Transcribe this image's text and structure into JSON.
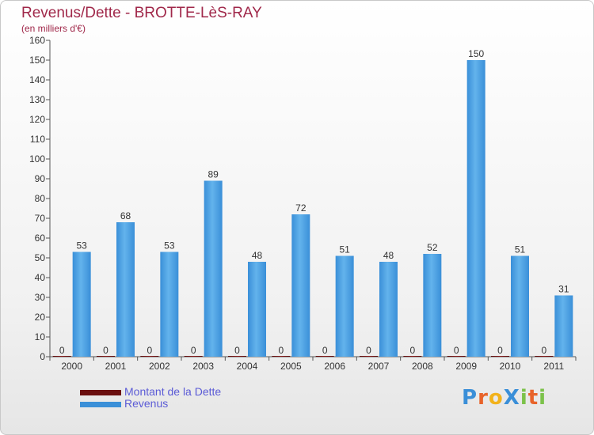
{
  "title": "Revenus/Dette - BROTTE-LèS-RAY",
  "subtitle": "(en milliers d'€)",
  "brand": {
    "text": "ProXiti",
    "letters": [
      "P",
      "r",
      "o",
      "X",
      "i",
      "t",
      "i"
    ],
    "colors": [
      "#3a8fd8",
      "#e8632a",
      "#f2b21b",
      "#3a8fd8",
      "#7cc24a",
      "#e8632a",
      "#7cc24a"
    ]
  },
  "colors": {
    "dette": "#6b0f0f",
    "revenus": "#3a8fd8",
    "revenus_light": "#5fb0ea",
    "title": "#a0284a",
    "legend_text": "#5b5bd6"
  },
  "chart_data": {
    "type": "bar",
    "title": "Revenus/Dette - BROTTE-LèS-RAY",
    "subtitle": "(en milliers d'€)",
    "categories": [
      "2000",
      "2001",
      "2002",
      "2003",
      "2004",
      "2005",
      "2006",
      "2007",
      "2008",
      "2009",
      "2010",
      "2011"
    ],
    "series": [
      {
        "name": "Montant de la Dette",
        "values": [
          0,
          0,
          0,
          0,
          0,
          0,
          0,
          0,
          0,
          0,
          0,
          0
        ]
      },
      {
        "name": "Revenus",
        "values": [
          53,
          68,
          53,
          89,
          48,
          72,
          51,
          48,
          52,
          150,
          51,
          31
        ]
      }
    ],
    "ylim": [
      0,
      160
    ],
    "yticks": [
      0,
      10,
      20,
      30,
      40,
      50,
      60,
      70,
      80,
      90,
      100,
      110,
      120,
      130,
      140,
      150,
      160
    ],
    "grid": false,
    "legend": "bottom-left"
  }
}
